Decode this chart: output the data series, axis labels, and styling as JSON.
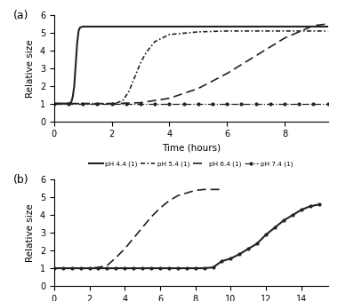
{
  "panel_a": {
    "title": "(a)",
    "xlabel": "Time (hours)",
    "ylabel": "Relative size",
    "xlim": [
      0,
      9.5
    ],
    "ylim": [
      0,
      6
    ],
    "yticks": [
      0,
      1,
      2,
      3,
      4,
      5,
      6
    ],
    "xticks": [
      0,
      2,
      4,
      6,
      8
    ],
    "series": {
      "pH 4.4 (1)": {
        "x": [
          0,
          0.2,
          0.4,
          0.5,
          0.55,
          0.6,
          0.65,
          0.7,
          0.75,
          0.8,
          0.85,
          0.9,
          1.0,
          1.2,
          1.5,
          2.0,
          9.5
        ],
        "y": [
          1.0,
          1.0,
          1.0,
          1.0,
          1.02,
          1.1,
          1.4,
          2.0,
          3.2,
          4.4,
          5.1,
          5.3,
          5.35,
          5.35,
          5.35,
          5.35,
          5.35
        ],
        "style": "solid",
        "marker": null,
        "color": "#222222",
        "linewidth": 1.5
      },
      "pH 5.4 (1)": {
        "x": [
          0,
          0.5,
          1.0,
          1.5,
          2.0,
          2.2,
          2.4,
          2.6,
          2.8,
          3.0,
          3.2,
          3.5,
          4.0,
          5.0,
          6.0,
          7.0,
          8.0,
          9.5
        ],
        "y": [
          1.0,
          1.0,
          1.0,
          1.0,
          1.0,
          1.05,
          1.2,
          1.7,
          2.5,
          3.3,
          3.9,
          4.5,
          4.9,
          5.05,
          5.1,
          5.1,
          5.1,
          5.1
        ],
        "style": "densely_dashed",
        "marker": null,
        "color": "#222222",
        "linewidth": 1.2
      },
      "pH 6.4 (1)": {
        "x": [
          0,
          1.0,
          2.0,
          3.0,
          4.0,
          5.0,
          6.0,
          7.0,
          8.0,
          9.0,
          9.5
        ],
        "y": [
          1.0,
          1.0,
          1.0,
          1.05,
          1.3,
          1.85,
          2.7,
          3.7,
          4.7,
          5.4,
          5.5
        ],
        "style": "dashed",
        "marker": null,
        "color": "#222222",
        "linewidth": 1.2
      },
      "pH 7.4 (1)": {
        "x": [
          0,
          0.5,
          1.0,
          1.5,
          2.0,
          2.5,
          3.0,
          3.5,
          4.0,
          4.5,
          5.0,
          5.5,
          6.0,
          6.5,
          7.0,
          7.5,
          8.0,
          8.5,
          9.0,
          9.5
        ],
        "y": [
          1.0,
          1.0,
          1.0,
          1.0,
          1.0,
          1.0,
          1.0,
          1.0,
          1.0,
          1.0,
          1.0,
          1.0,
          1.0,
          1.0,
          1.0,
          1.0,
          1.0,
          1.0,
          1.0,
          1.0
        ],
        "style": "dashdot",
        "marker": "o",
        "markersize": 2.0,
        "color": "#222222",
        "linewidth": 0.9
      }
    }
  },
  "panel_b": {
    "title": "(b)",
    "xlabel": "Time (hours)",
    "ylabel": "Relative size",
    "xlim": [
      0,
      15.5
    ],
    "ylim": [
      0,
      6
    ],
    "yticks": [
      0,
      1,
      2,
      3,
      4,
      5,
      6
    ],
    "xticks": [
      0,
      2,
      4,
      6,
      8,
      10,
      12,
      14
    ],
    "series": {
      "pH 6.4 (1)": {
        "x": [
          0,
          0.5,
          1.0,
          1.5,
          2.0,
          2.5,
          3.0,
          3.5,
          4.0,
          4.5,
          5.0,
          5.5,
          6.0,
          6.5,
          7.0,
          7.5,
          8.0,
          8.5,
          9.0,
          9.5
        ],
        "y": [
          1.0,
          1.0,
          1.0,
          1.0,
          1.0,
          1.05,
          1.15,
          1.6,
          2.1,
          2.7,
          3.3,
          3.9,
          4.4,
          4.8,
          5.1,
          5.25,
          5.4,
          5.45,
          5.45,
          5.45
        ],
        "style": "dashed",
        "marker": null,
        "color": "#222222",
        "linewidth": 1.2
      },
      "pH 6.4 (2)": {
        "x": [
          0,
          0.5,
          1.0,
          1.5,
          2.0,
          2.5,
          3.0,
          3.5,
          4.0,
          4.5,
          5.0,
          5.5,
          6.0,
          6.5,
          7.0,
          7.5,
          8.0,
          8.5,
          9.0,
          9.5,
          10.0,
          10.5,
          11.0,
          11.5,
          12.0,
          12.5,
          13.0,
          13.5,
          14.0,
          14.5,
          15.0
        ],
        "y": [
          1.0,
          1.0,
          1.0,
          1.0,
          1.0,
          1.0,
          1.0,
          1.0,
          1.0,
          1.0,
          1.0,
          1.0,
          1.0,
          1.0,
          1.0,
          1.0,
          1.0,
          1.0,
          1.05,
          1.4,
          1.55,
          1.8,
          2.1,
          2.4,
          2.9,
          3.3,
          3.7,
          4.0,
          4.3,
          4.5,
          4.6
        ],
        "style": "solid",
        "marker": "o",
        "markersize": 2.0,
        "color": "#222222",
        "linewidth": 1.5
      }
    }
  },
  "fig_width": 3.8,
  "fig_height": 3.39,
  "dpi": 100
}
